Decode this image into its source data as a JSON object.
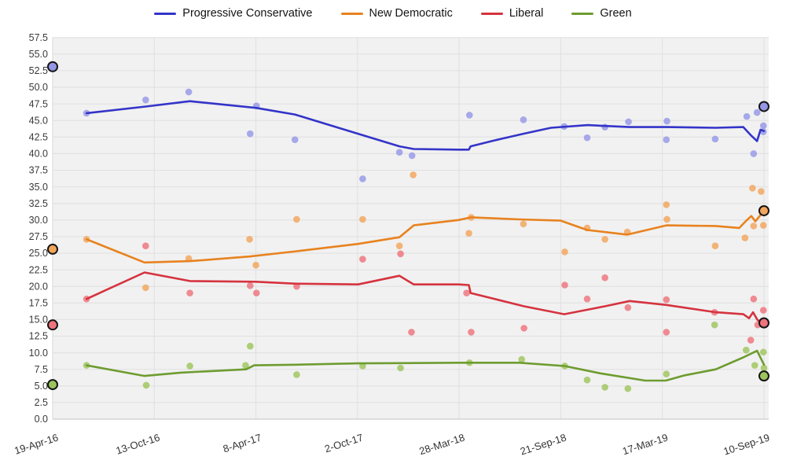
{
  "page": {
    "background": "#ffffff"
  },
  "legend": {
    "items": [
      {
        "label": "Progressive Conservative",
        "color": "#3434c9"
      },
      {
        "label": "New Democratic",
        "color": "#e8821f"
      },
      {
        "label": "Liberal",
        "color": "#d5333f"
      },
      {
        "label": "Green",
        "color": "#6e9c30"
      }
    ]
  },
  "plot": {
    "background": "#f1f1f1",
    "gridline_color": "#e0e0e0",
    "axis_line_color": "#cccccc",
    "tick_label_color": "#3a3a3a",
    "marker_ring_color": "#151515"
  },
  "chart_data": {
    "type": "line+scatter",
    "title": "",
    "legend_position": "top",
    "grid": true,
    "y_axis": {
      "min": 0,
      "max": 57.5,
      "step": 2.5,
      "ticks": [
        "0.0",
        "2.5",
        "5.0",
        "7.5",
        "10.0",
        "12.5",
        "15.0",
        "17.5",
        "20.0",
        "22.5",
        "25.0",
        "27.5",
        "30.0",
        "32.5",
        "35.0",
        "37.5",
        "40.0",
        "42.5",
        "45.0",
        "47.5",
        "50.0",
        "52.5",
        "55.0",
        "57.5"
      ]
    },
    "x_axis": {
      "total_days": 1239,
      "tick_days": [
        0,
        177,
        354,
        531,
        708,
        885,
        1062,
        1239
      ],
      "tick_labels": [
        "19-Apr-16",
        "13-Oct-16",
        "8-Apr-17",
        "2-Oct-17",
        "28-Mar-18",
        "21-Sep-18",
        "17-Mar-19",
        "10-Sep-19"
      ]
    },
    "series": [
      {
        "name": "Progressive Conservative",
        "line_color": "#3434c9",
        "point_color": "#9597e6",
        "trend": [
          [
            59,
            46.1
          ],
          [
            162,
            47.1
          ],
          [
            239,
            47.9
          ],
          [
            354,
            46.9
          ],
          [
            422,
            45.9
          ],
          [
            532,
            43.0
          ],
          [
            604,
            41.1
          ],
          [
            629,
            40.7
          ],
          [
            707,
            40.6
          ],
          [
            725,
            40.6
          ],
          [
            728,
            41.1
          ],
          [
            770,
            42.0
          ],
          [
            820,
            43.0
          ],
          [
            868,
            43.9
          ],
          [
            932,
            44.3
          ],
          [
            1005,
            44.0
          ],
          [
            1069,
            44.0
          ],
          [
            1155,
            43.9
          ],
          [
            1203,
            44.0
          ],
          [
            1217,
            42.7
          ],
          [
            1227,
            41.9
          ],
          [
            1233,
            43.6
          ],
          [
            1239,
            43.4
          ]
        ],
        "points": [
          [
            59,
            46.1
          ],
          [
            162,
            48.1
          ],
          [
            237,
            49.3
          ],
          [
            344,
            43.0
          ],
          [
            355,
            47.2
          ],
          [
            422,
            42.1
          ],
          [
            540,
            36.2
          ],
          [
            604,
            40.2
          ],
          [
            626,
            39.7
          ],
          [
            726,
            45.8
          ],
          [
            820,
            45.1
          ],
          [
            891,
            44.1
          ],
          [
            931,
            42.4
          ],
          [
            962,
            44.0
          ],
          [
            1003,
            44.8
          ],
          [
            1069,
            42.1
          ],
          [
            1070,
            44.9
          ],
          [
            1154,
            42.2
          ],
          [
            1209,
            45.6
          ],
          [
            1221,
            40.0
          ],
          [
            1227,
            46.2
          ],
          [
            1238,
            44.2
          ],
          [
            1238,
            43.3
          ]
        ],
        "circled_markers": [
          [
            0,
            53.1
          ],
          [
            1239,
            47.1
          ]
        ]
      },
      {
        "name": "New Democratic",
        "line_color": "#e8821f",
        "point_color": "#f2a55b",
        "trend": [
          [
            59,
            27.1
          ],
          [
            160,
            23.6
          ],
          [
            239,
            23.8
          ],
          [
            343,
            24.5
          ],
          [
            425,
            25.3
          ],
          [
            532,
            26.4
          ],
          [
            604,
            27.4
          ],
          [
            629,
            29.2
          ],
          [
            707,
            30.0
          ],
          [
            729,
            30.4
          ],
          [
            813,
            30.1
          ],
          [
            885,
            29.9
          ],
          [
            931,
            28.5
          ],
          [
            1001,
            27.8
          ],
          [
            1069,
            29.2
          ],
          [
            1155,
            29.1
          ],
          [
            1196,
            28.8
          ],
          [
            1207,
            29.8
          ],
          [
            1217,
            30.6
          ],
          [
            1224,
            29.8
          ],
          [
            1239,
            31.4
          ]
        ],
        "points": [
          [
            59,
            27.1
          ],
          [
            162,
            19.8
          ],
          [
            237,
            24.2
          ],
          [
            343,
            27.1
          ],
          [
            354,
            23.2
          ],
          [
            425,
            30.1
          ],
          [
            540,
            30.1
          ],
          [
            604,
            26.1
          ],
          [
            628,
            36.8
          ],
          [
            725,
            28.0
          ],
          [
            729,
            30.4
          ],
          [
            820,
            29.4
          ],
          [
            892,
            25.2
          ],
          [
            931,
            28.8
          ],
          [
            962,
            27.1
          ],
          [
            1001,
            28.2
          ],
          [
            1069,
            32.3
          ],
          [
            1070,
            30.1
          ],
          [
            1154,
            26.1
          ],
          [
            1206,
            27.3
          ],
          [
            1219,
            34.8
          ],
          [
            1221,
            29.1
          ],
          [
            1234,
            34.3
          ],
          [
            1238,
            29.2
          ]
        ],
        "circled_markers": [
          [
            0,
            25.6
          ],
          [
            1239,
            31.4
          ]
        ]
      },
      {
        "name": "Liberal",
        "line_color": "#d5333f",
        "point_color": "#ee737d",
        "trend": [
          [
            59,
            18.1
          ],
          [
            160,
            22.1
          ],
          [
            239,
            20.8
          ],
          [
            354,
            20.7
          ],
          [
            425,
            20.4
          ],
          [
            532,
            20.3
          ],
          [
            604,
            21.6
          ],
          [
            629,
            20.3
          ],
          [
            707,
            20.3
          ],
          [
            725,
            20.2
          ],
          [
            728,
            19.0
          ],
          [
            821,
            17.0
          ],
          [
            891,
            15.8
          ],
          [
            962,
            17.0
          ],
          [
            1005,
            17.8
          ],
          [
            1069,
            17.2
          ],
          [
            1155,
            16.1
          ],
          [
            1203,
            15.8
          ],
          [
            1213,
            15.2
          ],
          [
            1220,
            16.1
          ],
          [
            1228,
            14.9
          ],
          [
            1239,
            14.4
          ]
        ],
        "points": [
          [
            59,
            18.1
          ],
          [
            162,
            26.1
          ],
          [
            239,
            19.0
          ],
          [
            344,
            20.1
          ],
          [
            355,
            19.0
          ],
          [
            425,
            20.0
          ],
          [
            540,
            24.1
          ],
          [
            606,
            24.9
          ],
          [
            625,
            13.1
          ],
          [
            721,
            19.0
          ],
          [
            729,
            13.1
          ],
          [
            821,
            13.7
          ],
          [
            892,
            20.2
          ],
          [
            931,
            18.1
          ],
          [
            962,
            21.3
          ],
          [
            1002,
            16.8
          ],
          [
            1069,
            18.0
          ],
          [
            1069,
            13.1
          ],
          [
            1153,
            16.1
          ],
          [
            1216,
            11.9
          ],
          [
            1221,
            18.1
          ],
          [
            1228,
            14.2
          ],
          [
            1238,
            16.4
          ]
        ],
        "circled_markers": [
          [
            0,
            14.2
          ],
          [
            1239,
            14.5
          ]
        ]
      },
      {
        "name": "Green",
        "line_color": "#6e9c30",
        "point_color": "#9dc45c",
        "trend": [
          [
            59,
            8.1
          ],
          [
            160,
            6.5
          ],
          [
            223,
            7.0
          ],
          [
            337,
            7.5
          ],
          [
            351,
            8.1
          ],
          [
            425,
            8.2
          ],
          [
            532,
            8.4
          ],
          [
            707,
            8.5
          ],
          [
            813,
            8.5
          ],
          [
            892,
            8.0
          ],
          [
            954,
            6.9
          ],
          [
            1032,
            5.8
          ],
          [
            1068,
            5.8
          ],
          [
            1101,
            6.6
          ],
          [
            1155,
            7.5
          ],
          [
            1203,
            9.3
          ],
          [
            1227,
            10.3
          ],
          [
            1239,
            8.2
          ]
        ],
        "points": [
          [
            59,
            8.1
          ],
          [
            163,
            5.1
          ],
          [
            239,
            8.0
          ],
          [
            336,
            8.1
          ],
          [
            344,
            11.0
          ],
          [
            425,
            6.7
          ],
          [
            540,
            8.0
          ],
          [
            606,
            7.7
          ],
          [
            726,
            8.5
          ],
          [
            817,
            9.0
          ],
          [
            892,
            8.0
          ],
          [
            931,
            5.9
          ],
          [
            962,
            4.8
          ],
          [
            1002,
            4.6
          ],
          [
            1069,
            6.8
          ],
          [
            1153,
            14.2
          ],
          [
            1208,
            10.4
          ],
          [
            1223,
            8.1
          ],
          [
            1238,
            10.1
          ],
          [
            1239,
            7.7
          ]
        ],
        "circled_markers": [
          [
            0,
            5.2
          ],
          [
            1239,
            6.5
          ]
        ]
      }
    ]
  }
}
